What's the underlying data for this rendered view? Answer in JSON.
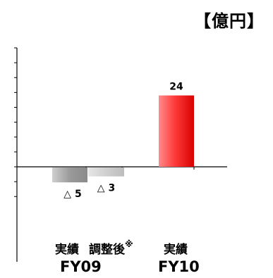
{
  "chart_data": {
    "type": "bar",
    "unit": "【億円】",
    "ylim": [
      -10,
      40
    ],
    "categories": [
      "FY09 実績",
      "FY09 調整後※",
      "FY10 実績"
    ],
    "values": [
      -5,
      -3,
      24
    ],
    "value_labels": [
      "△ 5",
      "△ 3",
      "24"
    ],
    "category_labels": {
      "fy09_actual": "実績",
      "fy09_adjusted": "調整後",
      "fy09_adjusted_note": "※",
      "fy10_actual": "実績"
    },
    "periods": [
      "FY09",
      "FY10"
    ],
    "colors": {
      "fy09_actual": "#9a9a9a",
      "fy09_adjusted": "#cfcfcf",
      "fy10_actual": "#ff3b3b"
    },
    "grid": false
  }
}
